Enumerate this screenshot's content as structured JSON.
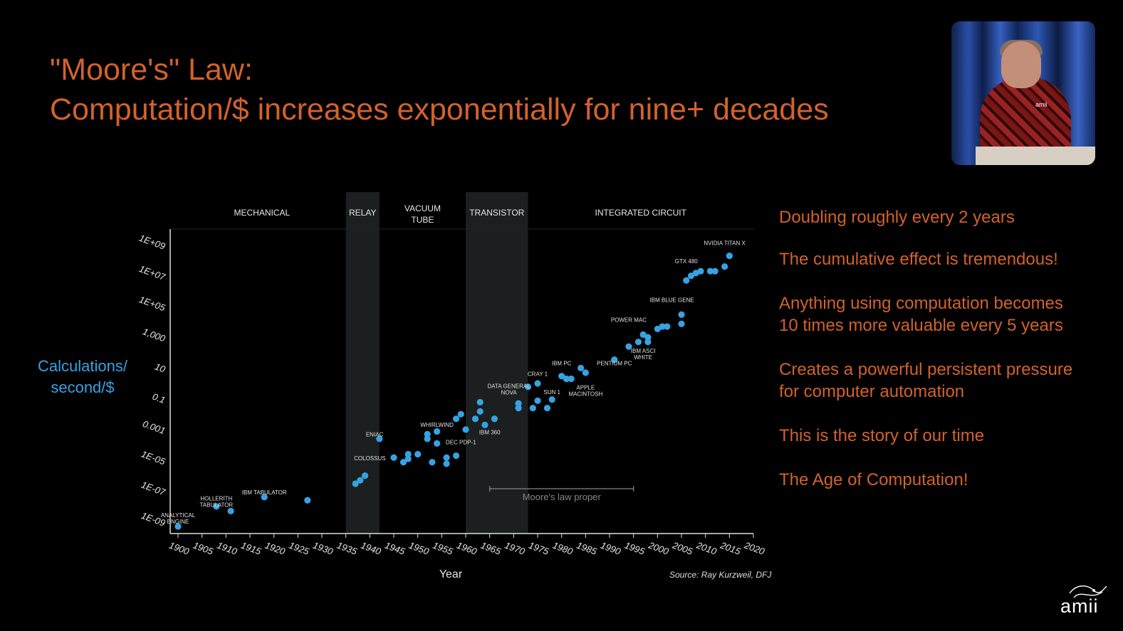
{
  "title": {
    "line1": "\"Moore's\" Law:",
    "line2": "Computation/$ increases exponentially for nine+ decades"
  },
  "bullets": [
    "Doubling roughly every 2 years",
    "The cumulative effect is tremendous!",
    "Anything using computation becomes",
    "10 times more valuable every 5 years",
    "Creates a powerful persistent pressure",
    "for computer automation",
    "This is the story of our time",
    "The Age of Computation!"
  ],
  "logo": {
    "text": "amii"
  },
  "video": {
    "badge": "amii"
  },
  "colors": {
    "accent": "#d2622a",
    "points": "#35a3e3",
    "era_shade": "#1b1f1f"
  },
  "chart_data": {
    "type": "scatter",
    "xlabel": "Year",
    "ylabel": "Calculations/ second/$",
    "source": "Source: Ray Kurzweil, DFJ",
    "yscale": "log",
    "xlim": [
      1900,
      2020
    ],
    "ylim": [
      1e-09,
      1000000000.0
    ],
    "x_ticks": [
      "1900",
      "1905",
      "1910",
      "1915",
      "1920",
      "1925",
      "1930",
      "1935",
      "1940",
      "1945",
      "1950",
      "1955",
      "1960",
      "1965",
      "1970",
      "1975",
      "1980",
      "1985",
      "1990",
      "1995",
      "2000",
      "2005",
      "2010",
      "2015",
      "2020"
    ],
    "y_ticks": [
      "1E+09",
      "1E+07",
      "1E+05",
      "1,000",
      "10",
      "0.1",
      "0.001",
      "1E-05",
      "1E-07",
      "1E-09"
    ],
    "eras": [
      {
        "name": "MECHANICAL",
        "start": 1900,
        "end": 1935,
        "shaded": false
      },
      {
        "name": "RELAY",
        "start": 1935,
        "end": 1942,
        "shaded": true
      },
      {
        "name": "VACUUM TUBE",
        "start": 1942,
        "end": 1960,
        "shaded": false
      },
      {
        "name": "TRANSISTOR",
        "start": 1960,
        "end": 1973,
        "shaded": true
      },
      {
        "name": "INTEGRATED CIRCUIT",
        "start": 1973,
        "end": 2020,
        "shaded": false
      }
    ],
    "annotation": {
      "text": "Moore's law proper",
      "from": 1965,
      "to": 1995,
      "y": 1e-07
    },
    "labels": [
      {
        "text": "ANALYTICAL ENGINE",
        "x": 1900,
        "y": 4e-09
      },
      {
        "text": "HOLLERITH TABULATOR",
        "x": 1908,
        "y": 5e-08
      },
      {
        "text": "IBM TABULATOR",
        "x": 1918,
        "y": 1.2e-07
      },
      {
        "text": "COLOSSUS",
        "x": 1940,
        "y": 2e-05
      },
      {
        "text": "ENIAC",
        "x": 1941,
        "y": 0.0007
      },
      {
        "text": "WHIRLWIND",
        "x": 1954,
        "y": 0.003
      },
      {
        "text": "DEC PDP-1",
        "x": 1959,
        "y": 0.00022
      },
      {
        "text": "IBM 360",
        "x": 1965,
        "y": 0.001
      },
      {
        "text": "DATA GENERAL NOVA",
        "x": 1969,
        "y": 1.0
      },
      {
        "text": "CRAY 1",
        "x": 1975,
        "y": 6.0
      },
      {
        "text": "SUN 1",
        "x": 1978,
        "y": 0.4
      },
      {
        "text": "IBM PC",
        "x": 1980,
        "y": 30.0
      },
      {
        "text": "APPLE MACINTOSH",
        "x": 1985,
        "y": 0.8
      },
      {
        "text": "PENTIUM PC",
        "x": 1991,
        "y": 30.0
      },
      {
        "text": "POWER MAC",
        "x": 1994,
        "y": 20000.0
      },
      {
        "text": "IBM ASCI WHITE",
        "x": 1997,
        "y": 200.0
      },
      {
        "text": "IBM BLUE GENE",
        "x": 2003,
        "y": 400000.0
      },
      {
        "text": "GTX 480",
        "x": 2006,
        "y": 130000000.0
      },
      {
        "text": "NVIDIA TITAN X",
        "x": 2014,
        "y": 2000000000.0
      }
    ],
    "points": [
      {
        "x": 1900,
        "y": 1e-09
      },
      {
        "x": 1908,
        "y": 2e-08
      },
      {
        "x": 1911,
        "y": 1e-08
      },
      {
        "x": 1918,
        "y": 8e-08
      },
      {
        "x": 1927,
        "y": 5e-08
      },
      {
        "x": 1937,
        "y": 6e-07
      },
      {
        "x": 1938,
        "y": 1e-06
      },
      {
        "x": 1939,
        "y": 2e-06
      },
      {
        "x": 1942,
        "y": 0.0005
      },
      {
        "x": 1945,
        "y": 3e-05
      },
      {
        "x": 1947,
        "y": 1.5e-05
      },
      {
        "x": 1948,
        "y": 5e-05
      },
      {
        "x": 1948,
        "y": 2.5e-05
      },
      {
        "x": 1950,
        "y": 5e-05
      },
      {
        "x": 1952,
        "y": 0.001
      },
      {
        "x": 1952,
        "y": 0.0005
      },
      {
        "x": 1953,
        "y": 1.5e-05
      },
      {
        "x": 1954,
        "y": 0.0015
      },
      {
        "x": 1954,
        "y": 0.00025
      },
      {
        "x": 1956,
        "y": 1.2e-05
      },
      {
        "x": 1956,
        "y": 3e-05
      },
      {
        "x": 1958,
        "y": 4e-05
      },
      {
        "x": 1958,
        "y": 0.01
      },
      {
        "x": 1959,
        "y": 0.02
      },
      {
        "x": 1960,
        "y": 0.002
      },
      {
        "x": 1962,
        "y": 0.01
      },
      {
        "x": 1963,
        "y": 0.03
      },
      {
        "x": 1963,
        "y": 0.12
      },
      {
        "x": 1964,
        "y": 0.004
      },
      {
        "x": 1966,
        "y": 0.01
      },
      {
        "x": 1971,
        "y": 0.05
      },
      {
        "x": 1971,
        "y": 0.1
      },
      {
        "x": 1973,
        "y": 1.2
      },
      {
        "x": 1974,
        "y": 0.05
      },
      {
        "x": 1975,
        "y": 2.0
      },
      {
        "x": 1975,
        "y": 0.15
      },
      {
        "x": 1977,
        "y": 0.05
      },
      {
        "x": 1978,
        "y": 0.18
      },
      {
        "x": 1980,
        "y": 6.0
      },
      {
        "x": 1981,
        "y": 4.0
      },
      {
        "x": 1982,
        "y": 4.0
      },
      {
        "x": 1984,
        "y": 20.0
      },
      {
        "x": 1985,
        "y": 10.0
      },
      {
        "x": 1991,
        "y": 70.0
      },
      {
        "x": 1994,
        "y": 500.0
      },
      {
        "x": 1996,
        "y": 1000.0
      },
      {
        "x": 1997,
        "y": 3000.0
      },
      {
        "x": 1998,
        "y": 2000.0
      },
      {
        "x": 1998,
        "y": 1000.0
      },
      {
        "x": 2000,
        "y": 7000.0
      },
      {
        "x": 2001,
        "y": 10000.0
      },
      {
        "x": 2002,
        "y": 10000.0
      },
      {
        "x": 2005,
        "y": 15000.0
      },
      {
        "x": 2005,
        "y": 60000.0
      },
      {
        "x": 2006,
        "y": 10000000.0
      },
      {
        "x": 2007,
        "y": 20000000.0
      },
      {
        "x": 2008,
        "y": 30000000.0
      },
      {
        "x": 2009,
        "y": 40000000.0
      },
      {
        "x": 2011,
        "y": 40000000.0
      },
      {
        "x": 2012,
        "y": 40000000.0
      },
      {
        "x": 2014,
        "y": 80000000.0
      },
      {
        "x": 2015,
        "y": 400000000.0
      }
    ]
  }
}
